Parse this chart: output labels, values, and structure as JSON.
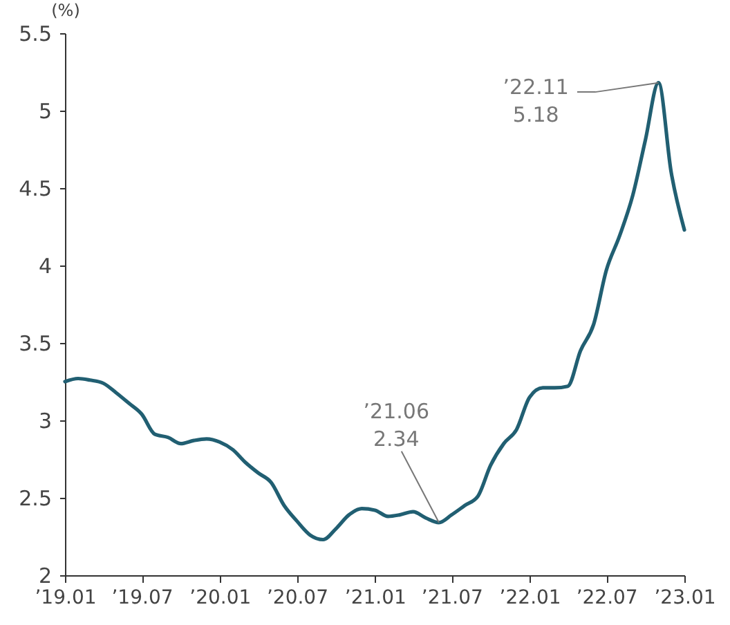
{
  "chart_data": {
    "type": "line",
    "ylabel": "(%)",
    "x": [
      "2019-01",
      "2019-02",
      "2019-03",
      "2019-04",
      "2019-05",
      "2019-06",
      "2019-07",
      "2019-08",
      "2019-09",
      "2019-10",
      "2019-11",
      "2019-12",
      "2020-01",
      "2020-02",
      "2020-03",
      "2020-04",
      "2020-05",
      "2020-06",
      "2020-07",
      "2020-08",
      "2020-09",
      "2020-10",
      "2020-11",
      "2020-12",
      "2021-01",
      "2021-02",
      "2021-03",
      "2021-04",
      "2021-05",
      "2021-06",
      "2021-07",
      "2021-08",
      "2021-09",
      "2021-10",
      "2021-11",
      "2021-12",
      "2022-01",
      "2022-02",
      "2022-03",
      "2022-04",
      "2022-05",
      "2022-06",
      "2022-07",
      "2022-08",
      "2022-09",
      "2022-10",
      "2022-11",
      "2022-12",
      "2023-01"
    ],
    "series": [
      {
        "color": "#215f72",
        "values": [
          3.25,
          3.27,
          3.26,
          3.24,
          3.18,
          3.11,
          3.04,
          2.91,
          2.89,
          2.85,
          2.87,
          2.88,
          2.86,
          2.81,
          2.73,
          2.66,
          2.6,
          2.45,
          2.35,
          2.26,
          2.23,
          2.3,
          2.39,
          2.43,
          2.42,
          2.38,
          2.39,
          2.41,
          2.37,
          2.34,
          2.39,
          2.45,
          2.51,
          2.71,
          2.85,
          2.94,
          3.15,
          3.21,
          3.21,
          3.22,
          3.45,
          3.62,
          3.97,
          4.19,
          4.45,
          4.81,
          5.18,
          4.6,
          4.23
        ]
      }
    ],
    "xlim": [
      "2019-01",
      "2023-01"
    ],
    "xticks": [
      {
        "value": "2019-01",
        "label": "’19.01"
      },
      {
        "value": "2019-07",
        "label": "’19.07"
      },
      {
        "value": "2020-01",
        "label": "’20.01"
      },
      {
        "value": "2020-07",
        "label": "’20.07"
      },
      {
        "value": "2021-01",
        "label": "’21.01"
      },
      {
        "value": "2021-07",
        "label": "’21.07"
      },
      {
        "value": "2022-01",
        "label": "’22.01"
      },
      {
        "value": "2022-07",
        "label": "’22.07"
      },
      {
        "value": "2023-01",
        "label": "’23.01"
      }
    ],
    "ylim": [
      2,
      5.5
    ],
    "yticks": [
      2,
      2.5,
      3,
      3.5,
      4,
      4.5,
      5,
      5.5
    ],
    "annotations": [
      {
        "text": "’21.06\n2.34",
        "x": "2021-06",
        "y": 2.34
      },
      {
        "text": "’22.11\n5.18",
        "x": "2022-11",
        "y": 5.18
      }
    ],
    "marker": "none",
    "line_style": "solid"
  }
}
